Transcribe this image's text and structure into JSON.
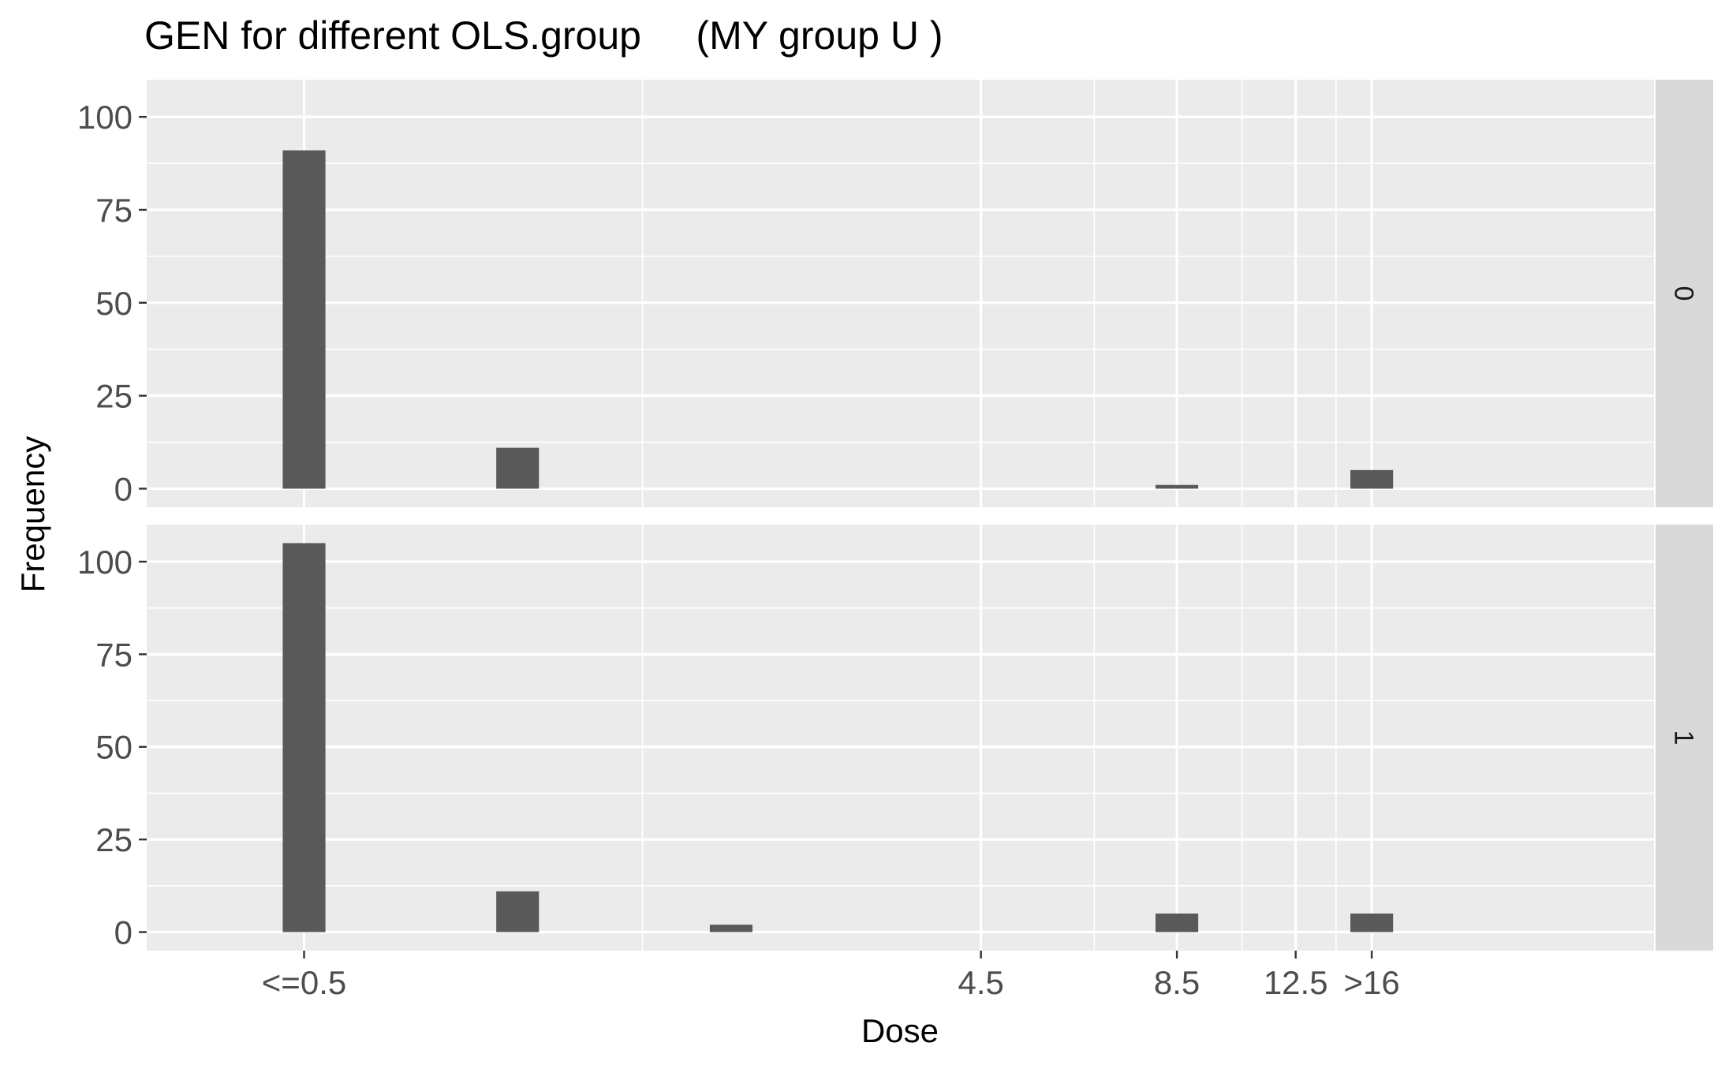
{
  "chart_data": {
    "type": "bar",
    "title": "GEN for different OLS.group     (MY group U )",
    "xlabel": "Dose",
    "ylabel": "Frequency",
    "ylim": [
      -5,
      110
    ],
    "yticks": [
      0,
      25,
      50,
      75,
      100
    ],
    "y_minor_ticks": [
      12.5,
      37.5,
      62.5,
      87.5
    ],
    "x_scale": "log2",
    "xlim": [
      0.3,
      40
    ],
    "x_tick_labels": [
      {
        "value": 0.5,
        "label": "<=0.5"
      },
      {
        "value": 4.5,
        "label": "4.5"
      },
      {
        "value": 8.5,
        "label": "8.5"
      },
      {
        "value": 12.5,
        "label": "12.5"
      },
      {
        "value": 16,
        "label": ">16"
      }
    ],
    "x_minor_ticks": [
      1.5,
      6.5,
      10.5,
      14.25
    ],
    "bar_positions": [
      0.5,
      1,
      2,
      8.5,
      16
    ],
    "bar_width_log2": 0.2,
    "panels": [
      {
        "strip": "0",
        "values": [
          91,
          11,
          0,
          1,
          5
        ]
      },
      {
        "strip": "1",
        "values": [
          105,
          11,
          2,
          5,
          5
        ]
      }
    ],
    "grid": true,
    "colors": {
      "bar": "#595959",
      "panel_bg": "#ebebeb",
      "grid": "#ffffff",
      "strip_bg": "#d9d9d9"
    }
  }
}
